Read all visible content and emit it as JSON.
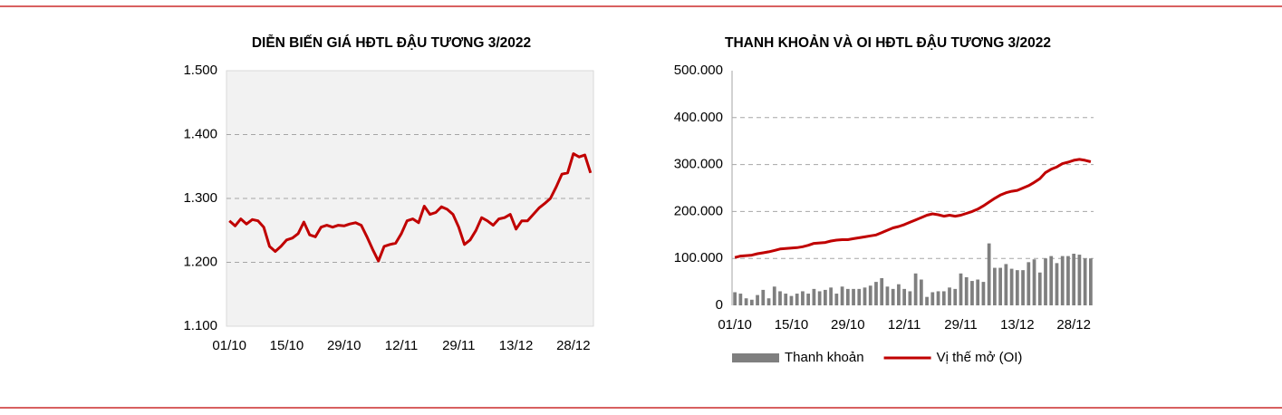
{
  "chart_data": [
    {
      "type": "line",
      "title": "DIỄN BIẾN GIÁ HĐTL ĐẬU TƯƠNG 3/2022",
      "background": "#f2f2f2",
      "grid": true,
      "categories": [
        "01/10",
        null,
        null,
        null,
        null,
        null,
        null,
        null,
        null,
        null,
        "15/10",
        null,
        null,
        null,
        null,
        null,
        null,
        null,
        null,
        null,
        "29/10",
        null,
        null,
        null,
        null,
        null,
        null,
        null,
        null,
        null,
        "12/11",
        null,
        null,
        null,
        null,
        null,
        null,
        null,
        null,
        null,
        "29/11",
        null,
        null,
        null,
        null,
        null,
        null,
        null,
        null,
        null,
        "13/12",
        null,
        null,
        null,
        null,
        null,
        null,
        null,
        null,
        null,
        "28/12",
        null,
        null,
        null
      ],
      "ylim": [
        1100,
        1500
      ],
      "yticks": [
        {
          "value": 1100,
          "label": "1.100"
        },
        {
          "value": 1200,
          "label": "1.200"
        },
        {
          "value": 1300,
          "label": "1.300"
        },
        {
          "value": 1400,
          "label": "1.400"
        },
        {
          "value": 1500,
          "label": "1.500"
        }
      ],
      "series": [
        {
          "name": "Giá",
          "color": "#c00000",
          "type": "line",
          "values": [
            1265,
            1257,
            1268,
            1260,
            1267,
            1265,
            1255,
            1225,
            1217,
            1225,
            1235,
            1238,
            1245,
            1263,
            1243,
            1240,
            1255,
            1258,
            1255,
            1258,
            1257,
            1260,
            1262,
            1258,
            1240,
            1220,
            1202,
            1225,
            1228,
            1230,
            1245,
            1265,
            1268,
            1262,
            1288,
            1275,
            1278,
            1287,
            1283,
            1275,
            1255,
            1228,
            1235,
            1250,
            1270,
            1265,
            1258,
            1268,
            1270,
            1275,
            1252,
            1265,
            1265,
            1275,
            1285,
            1292,
            1300,
            1318,
            1338,
            1340,
            1370,
            1365,
            1368,
            1340
          ]
        }
      ]
    },
    {
      "type": "combo",
      "title": "THANH KHOẢN VÀ OI HĐTL ĐẬU TƯƠNG 3/2022",
      "grid": true,
      "legend": "bottom",
      "categories": [
        "01/10",
        null,
        null,
        null,
        null,
        null,
        null,
        null,
        null,
        null,
        "15/10",
        null,
        null,
        null,
        null,
        null,
        null,
        null,
        null,
        null,
        "29/10",
        null,
        null,
        null,
        null,
        null,
        null,
        null,
        null,
        null,
        "12/11",
        null,
        null,
        null,
        null,
        null,
        null,
        null,
        null,
        null,
        "29/11",
        null,
        null,
        null,
        null,
        null,
        null,
        null,
        null,
        null,
        "13/12",
        null,
        null,
        null,
        null,
        null,
        null,
        null,
        null,
        null,
        "28/12",
        null,
        null,
        null
      ],
      "ylim": [
        0,
        500000
      ],
      "yticks": [
        0,
        {
          "value": 100000,
          "label": "100.000"
        },
        {
          "value": 200000,
          "label": "200.000"
        },
        {
          "value": 300000,
          "label": "300.000"
        },
        {
          "value": 400000,
          "label": "400.000"
        },
        {
          "value": 500000,
          "label": "500.000"
        }
      ],
      "series": [
        {
          "name": "Thanh khoản",
          "color": "#7f7f7f",
          "type": "bar",
          "values": [
            28000,
            25000,
            15000,
            12000,
            22000,
            33000,
            15000,
            40000,
            30000,
            25000,
            20000,
            25000,
            30000,
            25000,
            35000,
            30000,
            33000,
            38000,
            25000,
            40000,
            35000,
            35000,
            35000,
            38000,
            42000,
            50000,
            58000,
            40000,
            35000,
            45000,
            35000,
            30000,
            68000,
            55000,
            18000,
            28000,
            30000,
            30000,
            38000,
            35000,
            68000,
            60000,
            52000,
            55000,
            50000,
            132000,
            80000,
            80000,
            88000,
            78000,
            75000,
            75000,
            92000,
            98000,
            70000,
            100000,
            105000,
            90000,
            105000,
            105000,
            110000,
            108000,
            100000,
            100000
          ]
        },
        {
          "name": "Vị thế mở (OI)",
          "color": "#c00000",
          "type": "line",
          "values": [
            102000,
            105000,
            106000,
            107000,
            110000,
            112000,
            114000,
            117000,
            120000,
            121000,
            122000,
            123000,
            125000,
            128000,
            132000,
            133000,
            134000,
            137000,
            139000,
            140000,
            140000,
            142000,
            144000,
            146000,
            148000,
            150000,
            155000,
            160000,
            165000,
            168000,
            172000,
            177000,
            182000,
            187000,
            192000,
            195000,
            193000,
            190000,
            192000,
            190000,
            192000,
            196000,
            200000,
            205000,
            212000,
            220000,
            228000,
            235000,
            240000,
            243000,
            245000,
            250000,
            255000,
            262000,
            270000,
            283000,
            290000,
            295000,
            302000,
            305000,
            309000,
            311000,
            309000,
            306000
          ]
        }
      ]
    }
  ]
}
